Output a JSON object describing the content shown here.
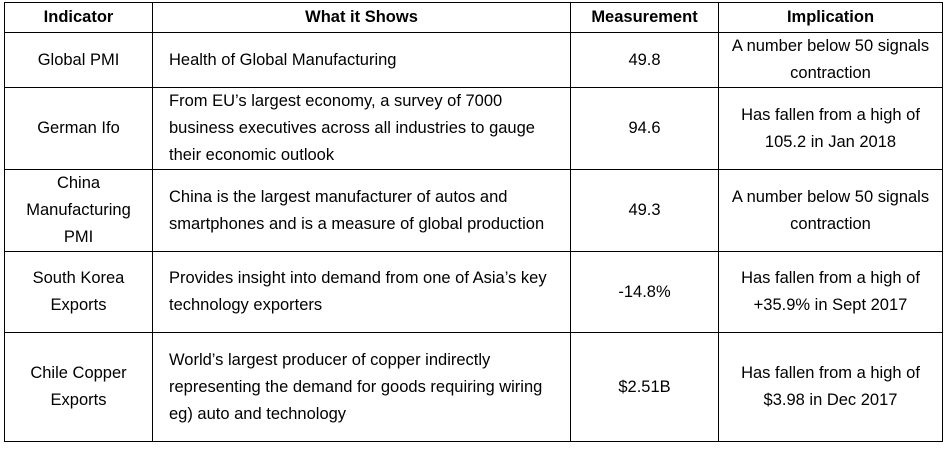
{
  "table": {
    "header": [
      "Indicator",
      "What it Shows",
      "Measurement",
      "Implication"
    ],
    "rows": [
      [
        "Global PMI",
        "Health of Global Manufacturing",
        "49.8",
        "A number below 50 signals contraction"
      ],
      [
        "German Ifo",
        "From EU’s largest economy, a survey of 7000 business executives across all industries to gauge their economic outlook",
        "94.6",
        "Has fallen from a high of 105.2 in Jan 2018"
      ],
      [
        "China Manufacturing PMI",
        "China is the largest manufacturer of autos and smartphones and is a measure of global production",
        "49.3",
        "A number below 50 signals contraction"
      ],
      [
        "South Korea Exports",
        "Provides insight into demand from one of Asia’s key technology exporters",
        "-14.8%",
        "Has fallen from a high of +35.9% in Sept 2017"
      ],
      [
        "Chile Copper Exports",
        "World’s largest producer of copper indirectly representing the demand for goods requiring wiring eg) auto and technology",
        "$2.51B",
        "Has fallen from a high of $3.98 in Dec 2017"
      ]
    ]
  }
}
